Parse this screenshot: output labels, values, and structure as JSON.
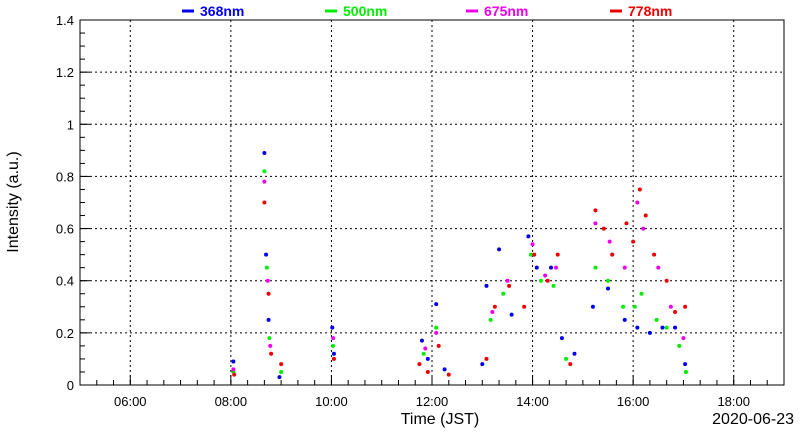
{
  "chart_data": {
    "type": "scatter",
    "xlabel": "Time (JST)",
    "ylabel": "Intensity (a.u.)",
    "date_label": "2020-06-23",
    "xlim": [
      "05:00",
      "19:00"
    ],
    "ylim": [
      0,
      1.4
    ],
    "x_ticks": [
      "06:00",
      "08:00",
      "10:00",
      "12:00",
      "14:00",
      "16:00",
      "18:00"
    ],
    "y_ticks": [
      "0",
      "0.2",
      "0.4",
      "0.6",
      "0.8",
      "1",
      "1.2",
      "1.4"
    ],
    "grid": true,
    "legend_position": "top",
    "series": [
      {
        "name": "368nm",
        "color": "#0000ee",
        "points": [
          [
            "08:03",
            0.09
          ],
          [
            "08:40",
            0.89
          ],
          [
            "08:42",
            0.5
          ],
          [
            "08:45",
            0.25
          ],
          [
            "08:58",
            0.03
          ],
          [
            "10:01",
            0.22
          ],
          [
            "10:03",
            0.12
          ],
          [
            "11:48",
            0.17
          ],
          [
            "11:55",
            0.1
          ],
          [
            "12:05",
            0.31
          ],
          [
            "12:15",
            0.06
          ],
          [
            "13:00",
            0.08
          ],
          [
            "13:05",
            0.38
          ],
          [
            "13:20",
            0.52
          ],
          [
            "13:35",
            0.27
          ],
          [
            "13:55",
            0.57
          ],
          [
            "14:05",
            0.45
          ],
          [
            "14:22",
            0.45
          ],
          [
            "14:35",
            0.18
          ],
          [
            "14:50",
            0.12
          ],
          [
            "15:12",
            0.3
          ],
          [
            "15:30",
            0.37
          ],
          [
            "15:50",
            0.25
          ],
          [
            "16:05",
            0.22
          ],
          [
            "16:20",
            0.2
          ],
          [
            "16:35",
            0.22
          ],
          [
            "16:50",
            0.22
          ],
          [
            "17:02",
            0.08
          ]
        ]
      },
      {
        "name": "500nm",
        "color": "#00ee00",
        "points": [
          [
            "08:03",
            0.05
          ],
          [
            "08:40",
            0.82
          ],
          [
            "08:43",
            0.45
          ],
          [
            "08:46",
            0.18
          ],
          [
            "09:00",
            0.05
          ],
          [
            "10:02",
            0.15
          ],
          [
            "11:50",
            0.12
          ],
          [
            "12:05",
            0.22
          ],
          [
            "13:10",
            0.25
          ],
          [
            "13:25",
            0.35
          ],
          [
            "13:58",
            0.5
          ],
          [
            "14:10",
            0.4
          ],
          [
            "14:25",
            0.38
          ],
          [
            "14:40",
            0.1
          ],
          [
            "15:15",
            0.45
          ],
          [
            "15:30",
            0.4
          ],
          [
            "15:48",
            0.3
          ],
          [
            "16:02",
            0.3
          ],
          [
            "16:10",
            0.35
          ],
          [
            "16:28",
            0.25
          ],
          [
            "16:40",
            0.22
          ],
          [
            "16:55",
            0.15
          ],
          [
            "17:03",
            0.05
          ]
        ]
      },
      {
        "name": "675nm",
        "color": "#ee00ee",
        "points": [
          [
            "08:03",
            0.06
          ],
          [
            "08:40",
            0.78
          ],
          [
            "08:44",
            0.4
          ],
          [
            "08:47",
            0.15
          ],
          [
            "10:02",
            0.18
          ],
          [
            "11:52",
            0.14
          ],
          [
            "12:05",
            0.2
          ],
          [
            "13:12",
            0.28
          ],
          [
            "13:30",
            0.4
          ],
          [
            "14:00",
            0.54
          ],
          [
            "14:15",
            0.42
          ],
          [
            "14:28",
            0.45
          ],
          [
            "15:15",
            0.62
          ],
          [
            "15:32",
            0.55
          ],
          [
            "15:50",
            0.45
          ],
          [
            "16:05",
            0.7
          ],
          [
            "16:12",
            0.6
          ],
          [
            "16:30",
            0.45
          ],
          [
            "16:45",
            0.3
          ],
          [
            "17:00",
            0.18
          ]
        ]
      },
      {
        "name": "778nm",
        "color": "#ee0000",
        "points": [
          [
            "08:04",
            0.04
          ],
          [
            "08:40",
            0.7
          ],
          [
            "08:45",
            0.35
          ],
          [
            "08:48",
            0.12
          ],
          [
            "09:00",
            0.08
          ],
          [
            "10:03",
            0.1
          ],
          [
            "11:45",
            0.08
          ],
          [
            "11:55",
            0.05
          ],
          [
            "12:08",
            0.15
          ],
          [
            "12:20",
            0.04
          ],
          [
            "13:05",
            0.1
          ],
          [
            "13:15",
            0.3
          ],
          [
            "13:32",
            0.38
          ],
          [
            "13:50",
            0.3
          ],
          [
            "14:02",
            0.5
          ],
          [
            "14:18",
            0.4
          ],
          [
            "14:30",
            0.5
          ],
          [
            "14:45",
            0.08
          ],
          [
            "15:15",
            0.67
          ],
          [
            "15:25",
            0.6
          ],
          [
            "15:35",
            0.5
          ],
          [
            "15:52",
            0.62
          ],
          [
            "16:00",
            0.55
          ],
          [
            "16:08",
            0.75
          ],
          [
            "16:15",
            0.65
          ],
          [
            "16:25",
            0.5
          ],
          [
            "16:40",
            0.4
          ],
          [
            "16:50",
            0.28
          ],
          [
            "17:02",
            0.3
          ]
        ]
      }
    ]
  }
}
